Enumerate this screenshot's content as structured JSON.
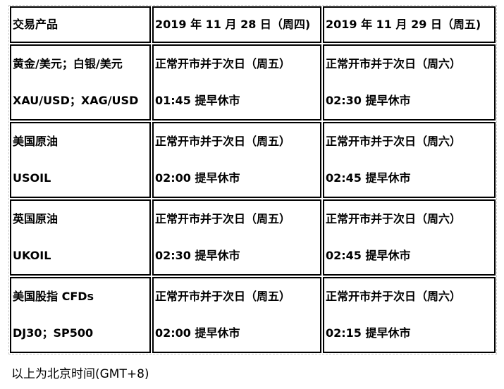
{
  "table": {
    "headers": [
      "交易产品",
      "2019 年 11 月 28 日（周四)",
      "2019 年 11 月 29 日（周五)"
    ],
    "rows": [
      {
        "product": [
          "黄金/美元；白银/美元",
          "XAU/USD；XAG/USD"
        ],
        "d1": [
          "正常开市并于次日（周五）",
          "01:45 提早休市"
        ],
        "d2": [
          "正常开市并于次日（周六）",
          "02:30 提早休市"
        ]
      },
      {
        "product": [
          "美国原油",
          "USOIL"
        ],
        "d1": [
          "正常开市并于次日（周五）",
          "02:00 提早休市"
        ],
        "d2": [
          "正常开市并于次日（周六）",
          "02:45 提早休市"
        ]
      },
      {
        "product": [
          "英国原油",
          "UKOIL"
        ],
        "d1": [
          "正常开市并于次日（周五）",
          "02:30 提早休市"
        ],
        "d2": [
          "正常开市并于次日（周六）",
          "02:45 提早休市"
        ]
      },
      {
        "product": [
          "美国股指 CFDs",
          "DJ30；SP500"
        ],
        "d1": [
          "正常开市并于次日（周五）",
          "02:00 提早休市"
        ],
        "d2": [
          "正常开市并于次日（周六）",
          "02:15 提早休市"
        ]
      }
    ]
  },
  "footnote": "以上为北京时间(GMT+8)"
}
